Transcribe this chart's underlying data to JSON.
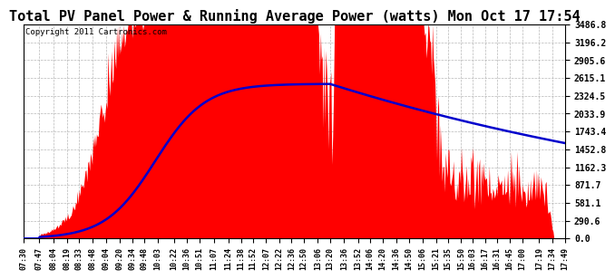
{
  "title": "Total PV Panel Power & Running Average Power (watts) Mon Oct 17 17:54",
  "copyright": "Copyright 2011 Cartronics.com",
  "ymax": 3486.8,
  "yticks": [
    0.0,
    290.6,
    581.1,
    871.7,
    1162.3,
    1452.8,
    1743.4,
    2033.9,
    2324.5,
    2615.1,
    2905.6,
    3196.2,
    3486.8
  ],
  "bg_color": "#ffffff",
  "plot_bg_color": "#ffffff",
  "bar_color": "#ff0000",
  "avg_color": "#0000cc",
  "grid_color": "#b0b0b0",
  "title_fontsize": 11,
  "copyright_fontsize": 6.5,
  "xtick_labels": [
    "07:30",
    "07:47",
    "08:04",
    "08:19",
    "08:33",
    "08:48",
    "09:04",
    "09:20",
    "09:34",
    "09:48",
    "10:03",
    "10:22",
    "10:36",
    "10:51",
    "11:07",
    "11:24",
    "11:38",
    "11:52",
    "12:07",
    "12:22",
    "12:36",
    "12:50",
    "13:06",
    "13:20",
    "13:36",
    "13:52",
    "14:06",
    "14:20",
    "14:36",
    "14:50",
    "15:06",
    "15:21",
    "15:35",
    "15:50",
    "16:03",
    "16:17",
    "16:31",
    "16:45",
    "17:00",
    "17:19",
    "17:34",
    "17:49"
  ]
}
